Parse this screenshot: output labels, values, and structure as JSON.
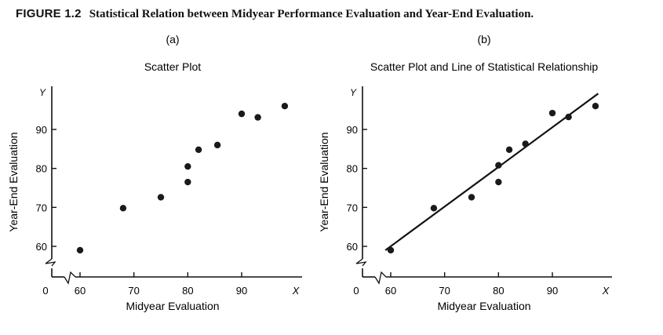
{
  "figure": {
    "label": "FIGURE 1.2",
    "caption": "Statistical Relation between Midyear Performance Evaluation and Year-End Evaluation."
  },
  "chart_data": [
    {
      "type": "scatter",
      "panel_label": "(a)",
      "title": "Scatter Plot",
      "xlabel": "Midyear Evaluation",
      "ylabel": "Year-End Evaluation",
      "x_axis_symbol": "X",
      "y_axis_symbol": "Y",
      "origin_label": "0",
      "x_ticks": [
        60,
        70,
        80,
        90
      ],
      "y_ticks": [
        60,
        70,
        80,
        90
      ],
      "xlim": [
        57,
        100
      ],
      "ylim": [
        56,
        100
      ],
      "axis_break": true,
      "grid": false,
      "points": [
        {
          "x": 60,
          "y": 59
        },
        {
          "x": 68,
          "y": 69.8
        },
        {
          "x": 75,
          "y": 72.6
        },
        {
          "x": 80,
          "y": 76.5
        },
        {
          "x": 80,
          "y": 80.5
        },
        {
          "x": 82,
          "y": 84.8
        },
        {
          "x": 85.5,
          "y": 86
        },
        {
          "x": 90,
          "y": 94
        },
        {
          "x": 93,
          "y": 93.1
        },
        {
          "x": 98,
          "y": 96
        }
      ]
    },
    {
      "type": "scatter",
      "panel_label": "(b)",
      "title": "Scatter Plot and Line of Statistical Relationship",
      "xlabel": "Midyear Evaluation",
      "ylabel": "Year-End Evaluation",
      "x_axis_symbol": "X",
      "y_axis_symbol": "Y",
      "origin_label": "0",
      "x_ticks": [
        60,
        70,
        80,
        90
      ],
      "y_ticks": [
        60,
        70,
        80,
        90
      ],
      "xlim": [
        57,
        100
      ],
      "ylim": [
        56,
        100
      ],
      "axis_break": true,
      "grid": false,
      "points": [
        {
          "x": 60,
          "y": 59
        },
        {
          "x": 68,
          "y": 69.8
        },
        {
          "x": 75,
          "y": 72.6
        },
        {
          "x": 80,
          "y": 76.5
        },
        {
          "x": 80,
          "y": 80.8
        },
        {
          "x": 82,
          "y": 84.8
        },
        {
          "x": 85,
          "y": 86.3
        },
        {
          "x": 90,
          "y": 94.2
        },
        {
          "x": 93,
          "y": 93.2
        },
        {
          "x": 98,
          "y": 96
        }
      ],
      "fit_line": {
        "x1": 59,
        "y1": 59,
        "x2": 98.5,
        "y2": 99.2
      }
    }
  ]
}
